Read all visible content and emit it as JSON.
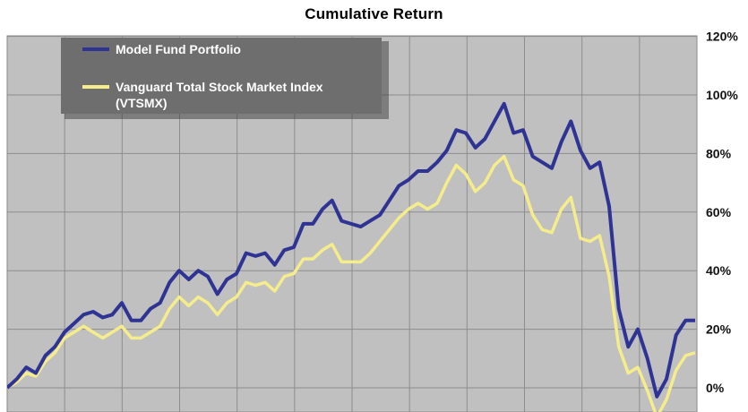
{
  "chart_data": {
    "type": "line",
    "title": "Cumulative Return",
    "xlabel": "",
    "ylabel": "",
    "ylim": [
      -10,
      120
    ],
    "yticks": [
      "120%",
      "100%",
      "80%",
      "60%",
      "40%",
      "20%",
      "0%"
    ],
    "ytick_values": [
      120,
      100,
      80,
      60,
      40,
      20,
      0
    ],
    "grid": true,
    "legend_position": "top-left",
    "background_color": "#c0c0c0",
    "legend_background": "#6e6e6e",
    "series": [
      {
        "name": "Model Fund Portfolio",
        "color": "#2e3394",
        "values": [
          0,
          3,
          7,
          5,
          11,
          14,
          19,
          22,
          25,
          26,
          24,
          25,
          29,
          23,
          23,
          27,
          29,
          36,
          40,
          37,
          40,
          38,
          32,
          37,
          39,
          46,
          45,
          46,
          42,
          47,
          48,
          56,
          56,
          61,
          64,
          57,
          56,
          55,
          57,
          59,
          64,
          69,
          71,
          74,
          74,
          77,
          81,
          88,
          87,
          82,
          85,
          91,
          97,
          87,
          88,
          79,
          77,
          75,
          84,
          91,
          81,
          75,
          77,
          62,
          27,
          14,
          20,
          10,
          -3,
          3,
          18,
          23,
          23
        ]
      },
      {
        "name": "Vanguard Total Stock Market Index (VTSMX)",
        "color": "#f5ec8c",
        "values": [
          0,
          2,
          5,
          4,
          9,
          12,
          17,
          19,
          21,
          19,
          17,
          19,
          21,
          17,
          17,
          19,
          21,
          27,
          31,
          28,
          31,
          29,
          25,
          29,
          31,
          36,
          35,
          36,
          33,
          38,
          39,
          44,
          44,
          47,
          49,
          43,
          43,
          43,
          46,
          50,
          54,
          58,
          61,
          63,
          61,
          63,
          70,
          76,
          73,
          67,
          70,
          76,
          79,
          71,
          69,
          59,
          54,
          53,
          61,
          65,
          51,
          50,
          52,
          38,
          14,
          5,
          7,
          -1,
          -10,
          -4,
          6,
          11,
          12
        ]
      }
    ]
  }
}
